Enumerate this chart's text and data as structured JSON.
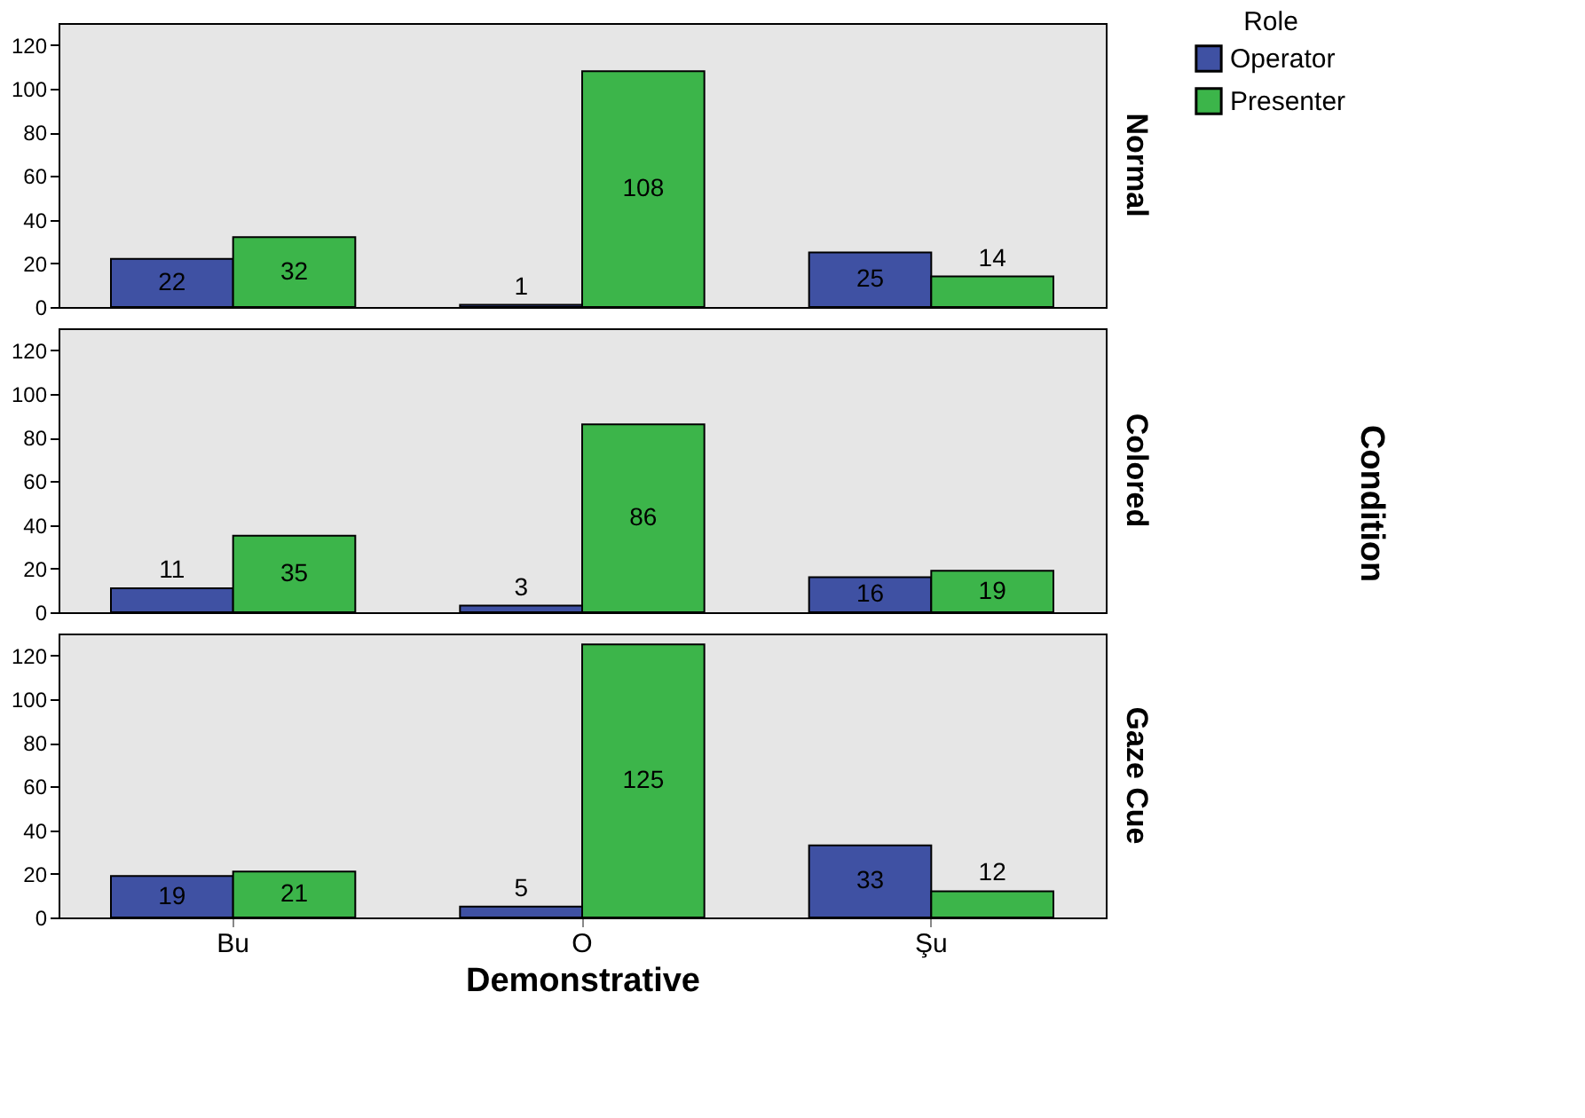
{
  "chart_data": [
    {
      "type": "bar",
      "y2label": "Normal",
      "categories": [
        "Bu",
        "O",
        "Şu"
      ],
      "legend_title": "Role",
      "legend": "right",
      "ylim": [
        0,
        130
      ],
      "yticks": [
        0,
        20,
        40,
        60,
        80,
        100,
        120
      ],
      "data_labels": true,
      "tick_labels": "y",
      "series": [
        {
          "name": "Operator",
          "color": "#3f51a3",
          "values": [
            22,
            1,
            25
          ]
        },
        {
          "name": "Presenter",
          "color": "#3cb54a",
          "values": [
            32,
            108,
            14
          ]
        }
      ]
    },
    {
      "type": "bar",
      "y2label": "Colored",
      "categories": [
        "Bu",
        "O",
        "Şu"
      ],
      "annotations": [
        "Condition"
      ],
      "ylim": [
        0,
        130
      ],
      "yticks": [
        0,
        20,
        40,
        60,
        80,
        100,
        120
      ],
      "data_labels": true,
      "tick_labels": "y",
      "series": [
        {
          "name": "Operator",
          "color": "#3f51a3",
          "values": [
            11,
            3,
            16
          ]
        },
        {
          "name": "Presenter",
          "color": "#3cb54a",
          "values": [
            35,
            86,
            19
          ]
        }
      ]
    },
    {
      "type": "bar",
      "y2label": "Gaze Cue",
      "categories": [
        "Bu",
        "O",
        "Şu"
      ],
      "xlabel": "Demonstrative",
      "ylim": [
        0,
        130
      ],
      "yticks": [
        0,
        20,
        40,
        60,
        80,
        100,
        120
      ],
      "data_labels": true,
      "series": [
        {
          "name": "Operator",
          "color": "#3f51a3",
          "values": [
            19,
            5,
            33
          ]
        },
        {
          "name": "Presenter",
          "color": "#3cb54a",
          "values": [
            21,
            125,
            12
          ]
        }
      ]
    }
  ]
}
